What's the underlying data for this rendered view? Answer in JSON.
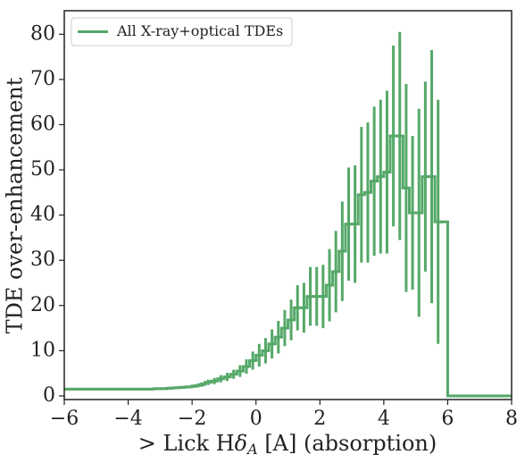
{
  "chart_data": {
    "type": "step",
    "xlabel": [
      "> Lick H",
      "δ",
      "A",
      " [A] (absorption)"
    ],
    "ylabel": "TDE over-enhancement",
    "xlim": [
      -6,
      8
    ],
    "ylim": [
      -0.8,
      85.2
    ],
    "xticks": [
      {
        "value": -6,
        "label": "−6"
      },
      {
        "value": -4,
        "label": "−4"
      },
      {
        "value": -2,
        "label": "−2"
      },
      0,
      2,
      4,
      6,
      8
    ],
    "yticks": [
      0,
      10,
      20,
      30,
      40,
      50,
      60,
      70,
      80
    ],
    "legend": "upper left",
    "series": [
      {
        "name": "All X-ray+optical TDEs",
        "color": "#55a868",
        "x": [
          -5.9,
          -5.7,
          -5.5,
          -5.3,
          -5.1,
          -4.9,
          -4.7,
          -4.5,
          -4.3,
          -4.1,
          -3.9,
          -3.7,
          -3.5,
          -3.3,
          -3.1,
          -2.9,
          -2.7,
          -2.5,
          -2.3,
          -2.1,
          -1.9,
          -1.7,
          -1.5,
          -1.3,
          -1.1,
          -0.9,
          -0.7,
          -0.5,
          -0.3,
          -0.1,
          0.1,
          0.3,
          0.5,
          0.7,
          0.9,
          1.1,
          1.3,
          1.5,
          1.7,
          1.9,
          2.1,
          2.3,
          2.5,
          2.7,
          2.9,
          3.1,
          3.3,
          3.5,
          3.7,
          3.9,
          4.1,
          4.3,
          4.5,
          4.7,
          4.9,
          5.1,
          5.3,
          5.5,
          5.7,
          5.9,
          6.1,
          6.3,
          6.5,
          6.7,
          6.9,
          7.1,
          7.3,
          7.5,
          7.7,
          7.9
        ],
        "values": [
          1.5,
          1.5,
          1.5,
          1.5,
          1.5,
          1.5,
          1.5,
          1.5,
          1.5,
          1.5,
          1.5,
          1.5,
          1.5,
          1.5,
          1.6,
          1.6,
          1.7,
          1.8,
          1.9,
          2.0,
          2.2,
          2.5,
          3.0,
          3.3,
          3.8,
          4.2,
          4.8,
          5.5,
          6.5,
          7.8,
          9.0,
          10.0,
          11.5,
          13.0,
          15.0,
          16.8,
          19.5,
          19.5,
          22.0,
          22.0,
          22.0,
          24.5,
          27.5,
          32.0,
          38.0,
          38.0,
          44.5,
          45.0,
          47.5,
          48.5,
          49.5,
          57.5,
          57.5,
          46.0,
          40.5,
          40.5,
          48.5,
          48.5,
          38.5,
          38.5,
          0,
          0,
          0,
          0,
          0,
          0,
          0,
          0,
          0,
          0
        ],
        "errors": [
          0.3,
          0.3,
          0.3,
          0.3,
          0.3,
          0.3,
          0.3,
          0.3,
          0.3,
          0.3,
          0.3,
          0.3,
          0.3,
          0.3,
          0.3,
          0.3,
          0.3,
          0.3,
          0.3,
          0.3,
          0.4,
          0.5,
          0.6,
          0.7,
          0.8,
          0.9,
          1.0,
          1.3,
          1.6,
          2.0,
          2.5,
          2.8,
          3.2,
          3.6,
          4.0,
          4.5,
          5.0,
          5.5,
          6.5,
          6.5,
          7.0,
          8.0,
          9.0,
          11.0,
          12.5,
          13.0,
          15.0,
          15.5,
          16.5,
          17.0,
          18.0,
          20.0,
          23.0,
          23.0,
          17.0,
          23.0,
          21.0,
          28.0,
          27.0,
          0,
          0,
          0,
          0,
          0,
          0,
          0,
          0,
          0,
          0,
          0
        ]
      }
    ]
  }
}
